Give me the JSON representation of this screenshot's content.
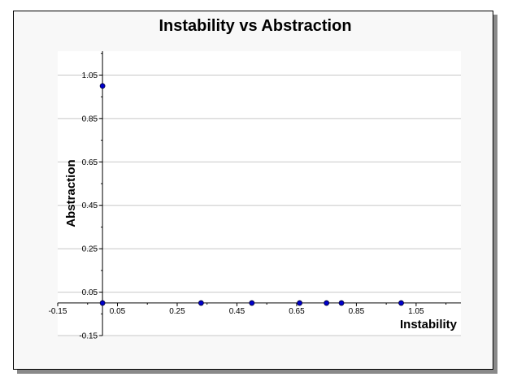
{
  "chart_data": {
    "type": "scatter",
    "title": "Instability vs Abstraction",
    "xlabel": "Instability",
    "ylabel": "Abstraction",
    "xlim": [
      -0.15,
      1.2
    ],
    "ylim": [
      -0.15,
      1.16
    ],
    "x_ticks": [
      -0.15,
      0.05,
      0.25,
      0.45,
      0.65,
      0.85,
      1.05
    ],
    "y_ticks": [
      -0.15,
      0.05,
      0.25,
      0.45,
      0.65,
      0.85,
      1.05
    ],
    "x_tick_labels": [
      "-0.15",
      "0.05",
      "0.25",
      "0.45",
      "0.65",
      "0.85",
      "1.05"
    ],
    "y_tick_labels": [
      "-0.15",
      "0.05",
      "0.25",
      "0.45",
      "0.65",
      "0.85",
      "1.05"
    ],
    "grid": true,
    "marker_color": "#0000cc",
    "points": [
      {
        "x": 0.0,
        "y": 1.0
      },
      {
        "x": 0.0,
        "y": 0.0
      },
      {
        "x": 0.33,
        "y": 0.0
      },
      {
        "x": 0.5,
        "y": 0.0
      },
      {
        "x": 0.66,
        "y": 0.0
      },
      {
        "x": 0.75,
        "y": 0.0
      },
      {
        "x": 0.8,
        "y": 0.0
      },
      {
        "x": 1.0,
        "y": 0.0
      }
    ]
  }
}
